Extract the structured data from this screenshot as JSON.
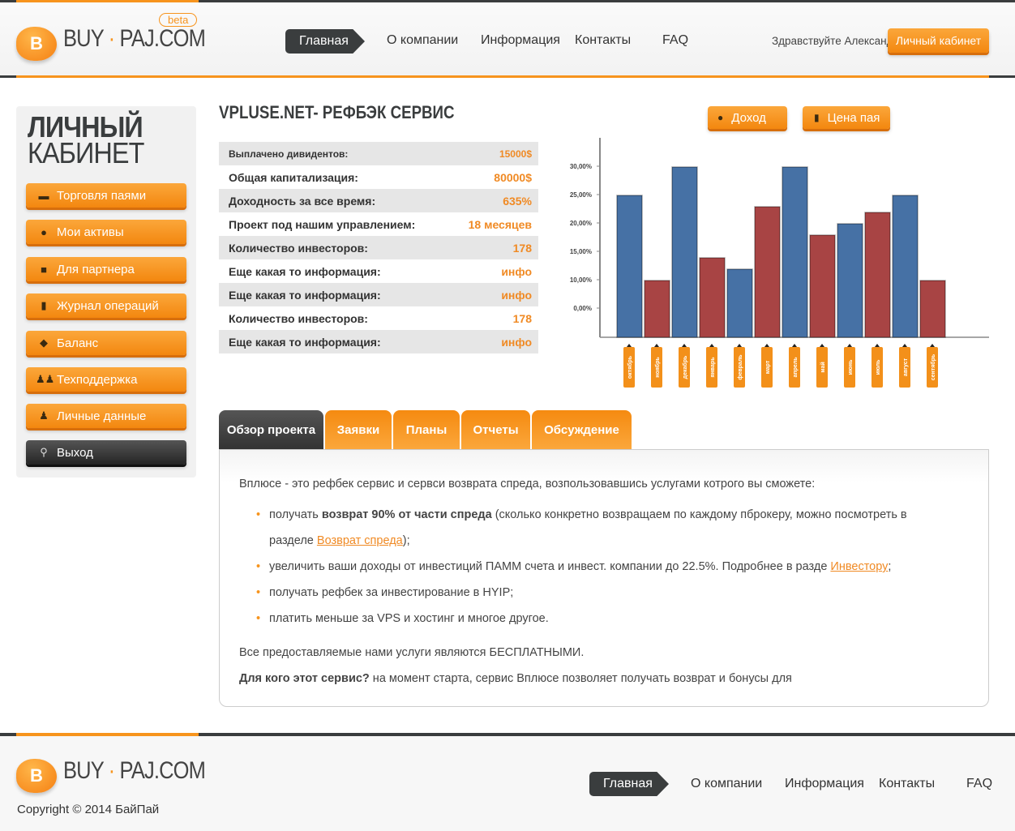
{
  "header": {
    "logo_letter": "B",
    "logo_left": "BUY",
    "logo_right": "PAJ.COM",
    "beta": "beta",
    "nav": [
      "Главная",
      "О компании",
      "Информация",
      "Контакты",
      "FAQ"
    ],
    "greeting": "Здравствуйте Александр!",
    "cabinet_button": "Личный кабинет"
  },
  "sidebar": {
    "title_bold": "ЛИЧНЫЙ",
    "title_light": "КАБИНЕТ",
    "items": [
      {
        "label": "Торговля паями",
        "icon": "gavel-icon"
      },
      {
        "label": "Мои активы",
        "icon": "money-bag-icon"
      },
      {
        "label": "Для партнера",
        "icon": "briefcase-icon"
      },
      {
        "label": "Журнал операций",
        "icon": "document-icon"
      },
      {
        "label": "Баланс",
        "icon": "piggy-bank-icon"
      },
      {
        "label": "Техподдержка",
        "icon": "users-icon"
      },
      {
        "label": "Личные данные",
        "icon": "user-icon"
      },
      {
        "label": "Выход",
        "icon": "running-man-icon"
      }
    ]
  },
  "main": {
    "title": "VPLUSE.NET- РЕФБЭК СЕРВИС",
    "stats": [
      {
        "label": "Выплачено дивидентов:",
        "value": "15000$"
      },
      {
        "label": "Общая капитализация:",
        "value": "80000$"
      },
      {
        "label": "Доходность за все время:",
        "value": "635%"
      },
      {
        "label": "Проект под нашим управлением:",
        "value": "18 месяцев"
      },
      {
        "label": "Количество инвесторов:",
        "value": "178"
      },
      {
        "label": "Еще какая то информация:",
        "value": "инфо"
      },
      {
        "label": "Еще какая то информация:",
        "value": "инфо"
      },
      {
        "label": "Количество инвесторов:",
        "value": "178"
      },
      {
        "label": "Еще какая то информация:",
        "value": "инфо"
      }
    ],
    "chart_buttons": [
      "Доход",
      "Цена пая"
    ]
  },
  "chart_data": {
    "type": "bar",
    "grid": false,
    "categories": [
      "октябрь",
      "ноябрь",
      "декабрь",
      "январь",
      "февраль",
      "март",
      "апрель",
      "май",
      "июнь",
      "июль",
      "август",
      "сентябрь"
    ],
    "values": [
      25,
      10,
      30,
      14,
      12,
      23,
      30,
      18,
      20,
      22,
      25,
      10
    ],
    "y_tick_labels": [
      "30,00%",
      "25,00%",
      "20,00%",
      "15,00%",
      "10,00%",
      "0,00%"
    ],
    "colors": [
      "#4671a5",
      "#a84444"
    ]
  },
  "tabs": [
    "Обзор проекта",
    "Заявки",
    "Планы",
    "Отчеты",
    "Обсуждение"
  ],
  "content": {
    "intro": "Вплюсе - это рефбек сервис и сервси возврата спреда, возпользовавшись услугами котрого вы сможете:",
    "b1_pre": "получать ",
    "b1_bold": "возврат 90% от части спреда",
    "b1_mid": " (сколько конкретно возвращаем по каждому пброкеру, можно посмотреть в разделе ",
    "b1_link": "Возврат спреда",
    "b1_end": ");",
    "b2_pre": "увеличить ваши доходы от инвестиций ПАММ счета и инвест. компании до 22.5%. Подробнее в разде ",
    "b2_link": "Инвестору",
    "b2_end": ";",
    "b3": "получать рефбек за инвестирование в HYIP;",
    "b4": "платить меньше за VPS и хостинг и многое другое.",
    "p2": "Все предоставляемые нами услуги являются БЕСПЛАТНЫМИ.",
    "p3_bold": "Для кого этот сервис?",
    "p3": " на момент старта, сервис Вплюсе позволяет получать возврат и бонусы для"
  },
  "footer": {
    "copyright": "Copyright © 2014 БайПай"
  }
}
